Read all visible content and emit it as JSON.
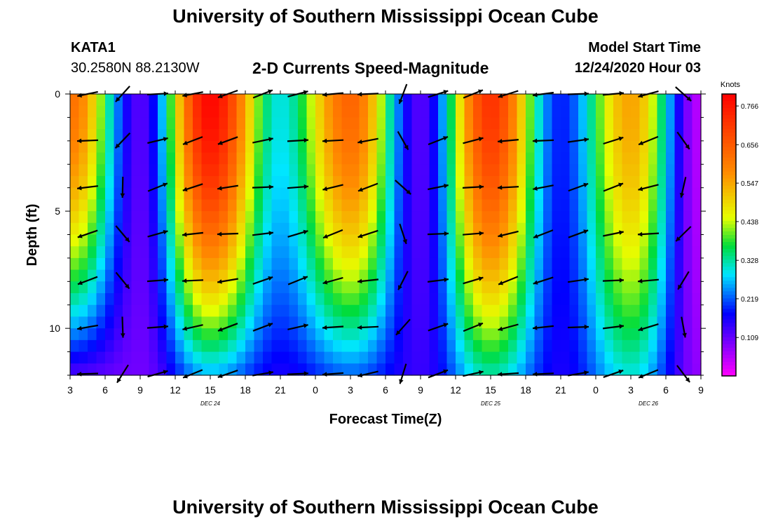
{
  "header": {
    "title": "University of Southern Mississippi Ocean Cube",
    "station": "KATA1",
    "coords": "30.2580N 88.2130W",
    "subtitle": "2-D Currents Speed-Magnitude",
    "model_start_label": "Model Start Time",
    "model_start_value": "12/24/2020 Hour 03"
  },
  "footer": {
    "title": "University of Southern Mississippi Ocean Cube"
  },
  "chart_data": {
    "type": "heatmap",
    "xlabel": "Forecast Time(Z)",
    "ylabel": "Depth (ft)",
    "x_ticks": [
      "3",
      "6",
      "9",
      "12",
      "15",
      "18",
      "21",
      "0",
      "3",
      "6",
      "9",
      "12",
      "15",
      "18",
      "21",
      "0",
      "3",
      "6",
      "9"
    ],
    "day_labels": [
      {
        "label": "DEC 24",
        "tick_index": 4
      },
      {
        "label": "DEC 25",
        "tick_index": 12
      },
      {
        "label": "DEC 26",
        "tick_index": 16.5
      }
    ],
    "y_ticks": [
      "0",
      "5",
      "10"
    ],
    "y_range_ft": [
      0,
      12
    ],
    "colorbar": {
      "unit": "Knots",
      "tick_values": [
        "0.766",
        "0.656",
        "0.547",
        "0.438",
        "0.328",
        "0.219",
        "0.109"
      ],
      "range": [
        0,
        0.8
      ]
    },
    "speed_profile": {
      "description_free": true,
      "x_hours": [
        3,
        9,
        15,
        21,
        27,
        33,
        39,
        45,
        51,
        57
      ],
      "surface_speed_kt": [
        0.62,
        0.12,
        0.79,
        0.3,
        0.64,
        0.12,
        0.72,
        0.19,
        0.55,
        0.05
      ],
      "bottom_speed_kt": [
        0.12,
        0.1,
        0.26,
        0.16,
        0.22,
        0.14,
        0.32,
        0.16,
        0.3,
        0.08
      ]
    },
    "arrows_note": "direction vectors per depth/time"
  }
}
